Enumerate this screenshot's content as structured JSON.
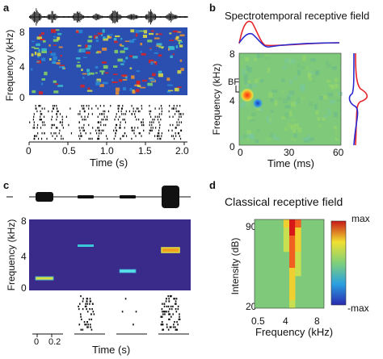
{
  "panels": {
    "a": {
      "letter": "a",
      "y_ticks": [
        "8",
        "4",
        "0"
      ],
      "y_label": "Frequency (kHz)",
      "x_ticks": [
        "0",
        "0.5",
        "1.0",
        "1.5",
        "2.0"
      ],
      "x_label": "Time (s)"
    },
    "b": {
      "letter": "b",
      "title": "Spectrotemporal receptive field",
      "y_ticks": [
        "8",
        "4",
        "0"
      ],
      "bf_label": "BF",
      "y_label": "Frequency (kHz)",
      "x_ticks": [
        "0",
        "30",
        "60"
      ],
      "x_label": "Time (ms)",
      "colors": {
        "excitatory": "#e8242a",
        "inhibitory": "#2a2ad0"
      }
    },
    "c": {
      "letter": "c",
      "y_ticks": [
        "8",
        "4",
        "0"
      ],
      "y_label": "Frequency (kHz)",
      "scale_ticks": [
        "0",
        "0.2"
      ],
      "x_label": "Time (s)"
    },
    "d": {
      "letter": "d",
      "title": "Classical receptive field",
      "y_ticks": [
        "90",
        "20"
      ],
      "y_label": "Intensity (dB)",
      "x_ticks": [
        "0.5",
        "4",
        "8"
      ],
      "x_label": "Frequency (kHz)",
      "colorbar": {
        "max_label": "max",
        "min_label": "-max"
      }
    }
  },
  "colors": {
    "spectrogram_bg": "#2a4fb0",
    "panel_c_bg": "#3a2a8a",
    "stimulus_ink": "#111111",
    "heat_bg": "#7fc97a"
  }
}
